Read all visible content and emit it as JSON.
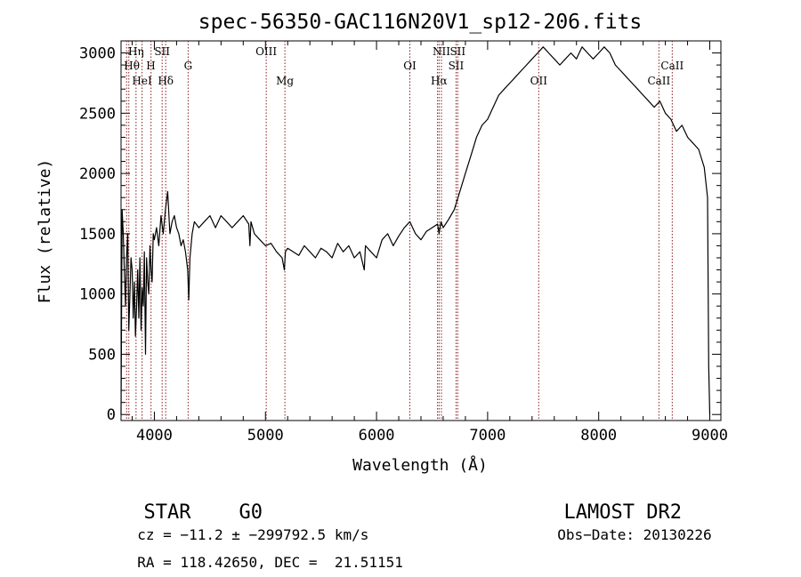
{
  "chart_data": {
    "type": "line",
    "title": "spec-56350-GAC116N20V1_sp12-206.fits",
    "xlabel": "Wavelength (Å)",
    "ylabel": "Flux (relative)",
    "xlim": [
      3700,
      9100
    ],
    "ylim": [
      -50,
      3100
    ],
    "xticks": [
      4000,
      5000,
      6000,
      7000,
      8000,
      9000
    ],
    "yticks": [
      0,
      500,
      1000,
      1500,
      2000,
      2500,
      3000
    ],
    "xtick_labels": [
      "4000",
      "5000",
      "6000",
      "7000",
      "8000",
      "9000"
    ],
    "ytick_labels": [
      "0",
      "500",
      "1000",
      "1500",
      "2000",
      "2500",
      "3000"
    ],
    "grid": false,
    "series": [
      {
        "color": "#000000",
        "x": [
          3700,
          3710,
          3720,
          3730,
          3740,
          3750,
          3760,
          3770,
          3780,
          3790,
          3800,
          3810,
          3820,
          3830,
          3840,
          3850,
          3860,
          3870,
          3880,
          3890,
          3900,
          3910,
          3920,
          3930,
          3940,
          3950,
          3960,
          3970,
          3980,
          3990,
          4000,
          4020,
          4040,
          4060,
          4080,
          4100,
          4120,
          4140,
          4160,
          4180,
          4200,
          4220,
          4240,
          4260,
          4280,
          4300,
          4310,
          4320,
          4340,
          4360,
          4400,
          4450,
          4500,
          4550,
          4600,
          4650,
          4700,
          4750,
          4800,
          4850,
          4860,
          4870,
          4900,
          4950,
          5000,
          5050,
          5100,
          5150,
          5170,
          5180,
          5200,
          5250,
          5300,
          5350,
          5400,
          5450,
          5500,
          5550,
          5600,
          5650,
          5700,
          5750,
          5800,
          5850,
          5890,
          5900,
          5950,
          6000,
          6050,
          6100,
          6150,
          6200,
          6250,
          6300,
          6350,
          6400,
          6450,
          6500,
          6550,
          6563,
          6580,
          6600,
          6650,
          6700,
          6750,
          6800,
          6850,
          6900,
          6950,
          7000,
          7050,
          7100,
          7150,
          7200,
          7250,
          7300,
          7350,
          7400,
          7450,
          7500,
          7550,
          7600,
          7650,
          7700,
          7750,
          7800,
          7850,
          7900,
          7950,
          8000,
          8050,
          8100,
          8150,
          8200,
          8250,
          8300,
          8350,
          8400,
          8450,
          8500,
          8550,
          8600,
          8650,
          8700,
          8750,
          8800,
          8850,
          8900,
          8950,
          8980,
          8990,
          9000
        ],
        "y": [
          0,
          1700,
          1500,
          1200,
          900,
          1300,
          1500,
          700,
          1000,
          1300,
          1200,
          800,
          1100,
          650,
          900,
          1200,
          800,
          1300,
          700,
          1050,
          900,
          1350,
          500,
          1300,
          1100,
          1000,
          1400,
          1200,
          1100,
          1500,
          1450,
          1550,
          1400,
          1650,
          1500,
          1700,
          1850,
          1500,
          1600,
          1650,
          1550,
          1500,
          1400,
          1450,
          1350,
          1200,
          950,
          1300,
          1500,
          1600,
          1550,
          1600,
          1650,
          1550,
          1650,
          1600,
          1550,
          1600,
          1650,
          1580,
          1400,
          1600,
          1500,
          1450,
          1400,
          1420,
          1350,
          1300,
          1200,
          1350,
          1380,
          1350,
          1320,
          1400,
          1350,
          1300,
          1380,
          1350,
          1300,
          1420,
          1350,
          1400,
          1300,
          1350,
          1200,
          1400,
          1350,
          1300,
          1450,
          1500,
          1400,
          1480,
          1550,
          1600,
          1500,
          1450,
          1520,
          1550,
          1580,
          1500,
          1600,
          1550,
          1620,
          1700,
          1850,
          2000,
          2150,
          2300,
          2400,
          2450,
          2550,
          2650,
          2700,
          2750,
          2800,
          2850,
          2900,
          2950,
          3000,
          3050,
          3000,
          2950,
          2900,
          2950,
          3000,
          2950,
          3050,
          3000,
          2950,
          3000,
          3050,
          3000,
          2900,
          2850,
          2800,
          2750,
          2700,
          2650,
          2600,
          2550,
          2600,
          2500,
          2450,
          2350,
          2400,
          2300,
          2250,
          2200,
          2050,
          1800,
          400,
          0
        ]
      }
    ],
    "lines": [
      {
        "x": 3750
      },
      {
        "x": 3770
      },
      {
        "x": 3835
      },
      {
        "x": 3889
      },
      {
        "x": 3970
      },
      {
        "x": 4070
      },
      {
        "x": 4102
      },
      {
        "x": 4304
      },
      {
        "x": 5007
      },
      {
        "x": 5175
      },
      {
        "x": 6300
      },
      {
        "x": 6549
      },
      {
        "x": 6563
      },
      {
        "x": 6584
      },
      {
        "x": 6716
      },
      {
        "x": 6731
      },
      {
        "x": 7460
      },
      {
        "x": 8542
      },
      {
        "x": 8662
      }
    ],
    "annotations": [
      {
        "text": "Hη",
        "x": 3835,
        "level": 0,
        "italic_part": true
      },
      {
        "text": "SII",
        "x": 4070,
        "level": 0
      },
      {
        "text": "OIII",
        "x": 5007,
        "level": 0
      },
      {
        "text": "NII",
        "x": 6584,
        "level": 0
      },
      {
        "text": "SII",
        "x": 6731,
        "level": 0
      },
      {
        "text": "Hθ",
        "x": 3797,
        "level": 1
      },
      {
        "text": "H",
        "x": 3968,
        "level": 1
      },
      {
        "text": "G",
        "x": 4304,
        "level": 1
      },
      {
        "text": "OI",
        "x": 6300,
        "level": 1
      },
      {
        "text": "SII",
        "x": 6716,
        "level": 1
      },
      {
        "text": "CaII",
        "x": 8662,
        "level": 1
      },
      {
        "text": "HeI",
        "x": 3889,
        "level": 2
      },
      {
        "text": "Hδ",
        "x": 4102,
        "level": 2
      },
      {
        "text": "Mg",
        "x": 5175,
        "level": 2
      },
      {
        "text": "Hα",
        "x": 6563,
        "level": 2
      },
      {
        "text": "OII",
        "x": 7460,
        "level": 2
      },
      {
        "text": "CaII",
        "x": 8542,
        "level": 2
      }
    ]
  },
  "info": {
    "object_class": "STAR",
    "subclass": "G0",
    "survey": "LAMOST DR2",
    "velocity": "cz = −11.2 ± −299792.5 km/s",
    "obs_date": "Obs−Date: 20130226",
    "coords": "RA = 118.42650, DEC =  21.51151"
  }
}
